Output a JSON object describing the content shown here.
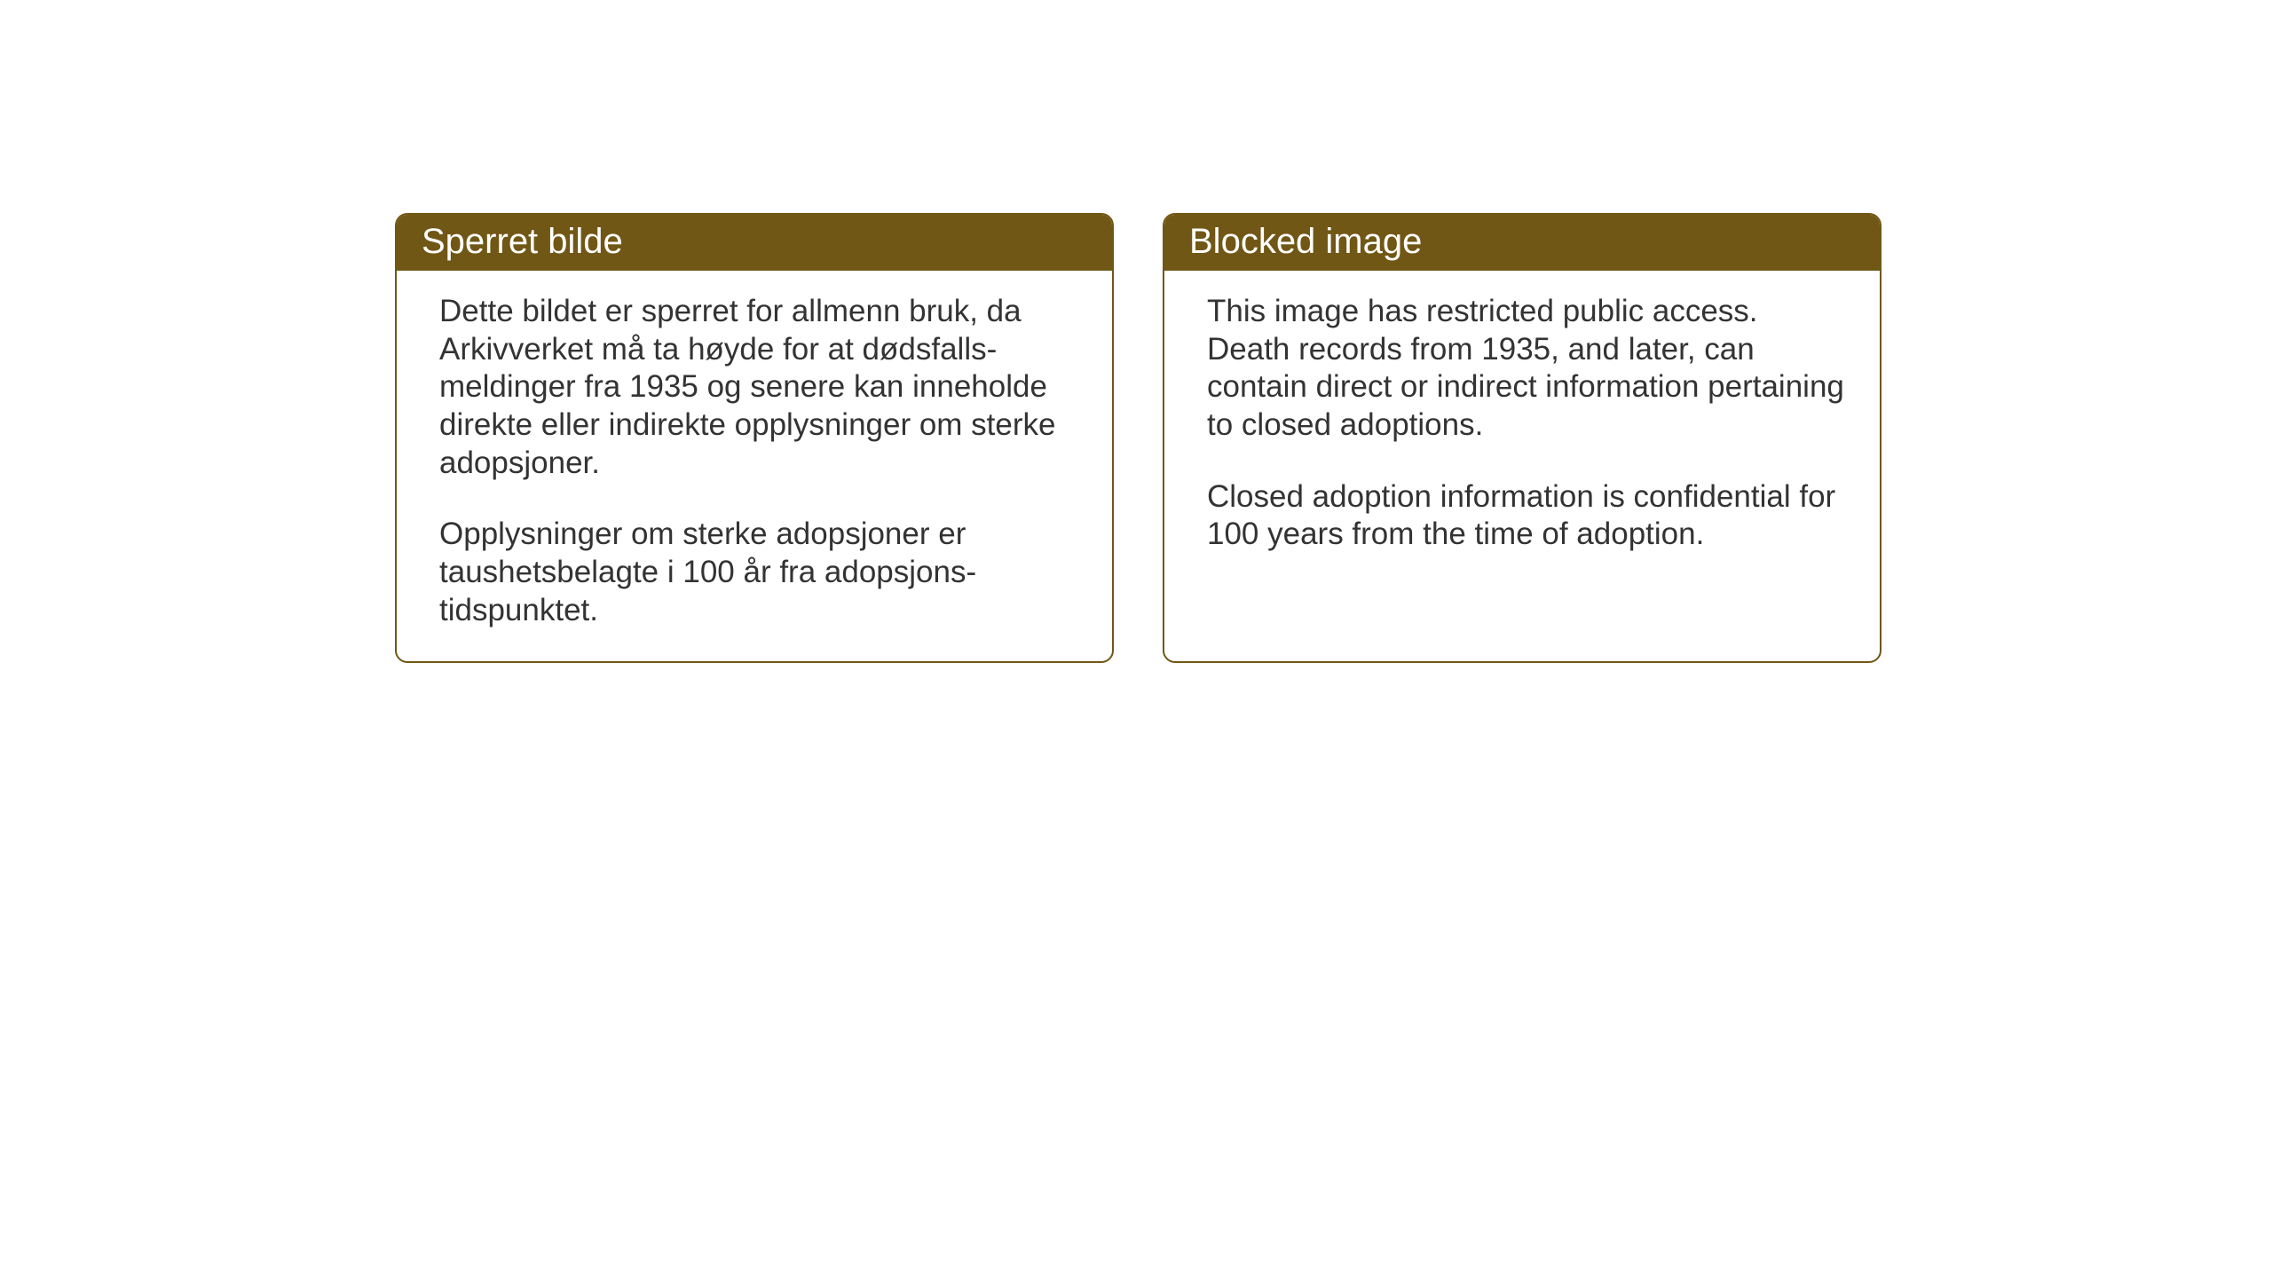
{
  "cards": [
    {
      "title": "Sperret bilde",
      "paragraph1": "Dette bildet er sperret for allmenn bruk, da Arkivverket må ta høyde for at dødsfalls-meldinger fra 1935 og senere kan inneholde direkte eller indirekte opplysninger om sterke adopsjoner.",
      "paragraph2": "Opplysninger om sterke adopsjoner er taushetsbelagte i 100 år fra adopsjons-tidspunktet."
    },
    {
      "title": "Blocked image",
      "paragraph1": "This image has restricted public access. Death records from 1935, and later, can contain direct or indirect information pertaining to closed adoptions.",
      "paragraph2": "Closed adoption information is confidential for 100 years from the time of adoption."
    }
  ],
  "styling": {
    "header_background_color": "#715715",
    "header_text_color": "#ffffff",
    "border_color": "#715715",
    "card_background_color": "#ffffff",
    "body_text_color": "#333333",
    "page_background_color": "#ffffff",
    "header_fontsize": 40,
    "body_fontsize": 35,
    "border_radius": 14,
    "border_width": 2
  }
}
